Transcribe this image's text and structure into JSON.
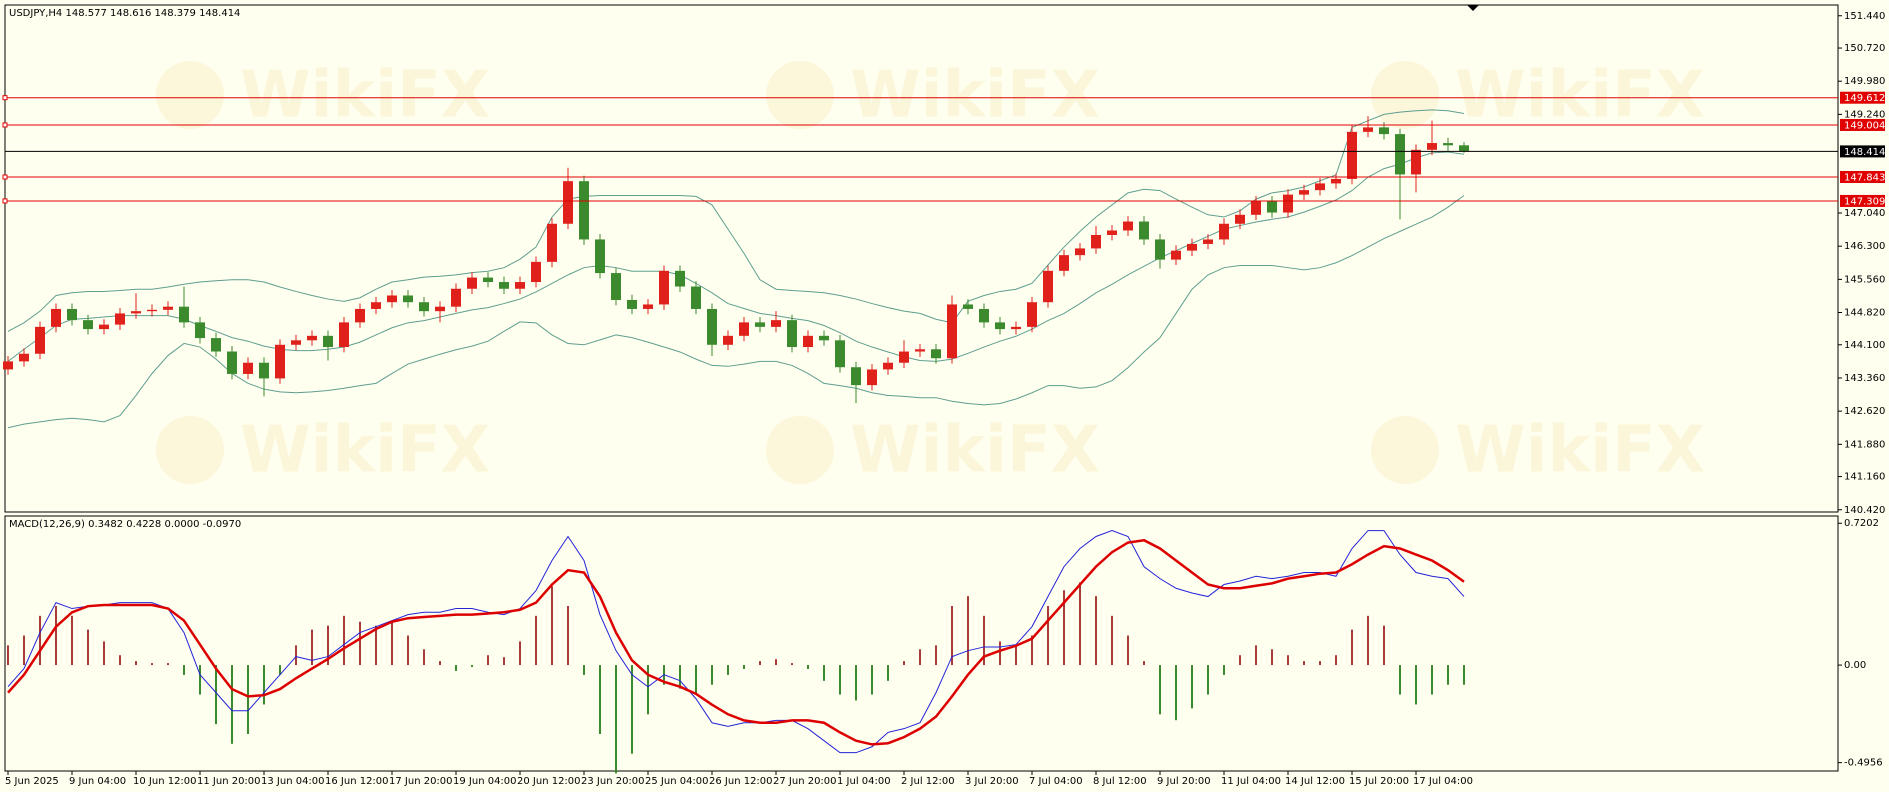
{
  "watermark": "WikiFX",
  "chart_data": [
    {
      "type": "candlestick",
      "title": "USDJPY,H4  148.577 148.616 148.379 148.414",
      "categories": [
        "5 Jun 2025",
        null,
        null,
        null,
        "9 Jun 04:00",
        null,
        null,
        null,
        "10 Jun 12:00",
        null,
        null,
        null,
        "11 Jun 20:00",
        null,
        null,
        null,
        "13 Jun 04:00",
        null,
        null,
        null,
        "16 Jun 12:00",
        null,
        null,
        null,
        "17 Jun 20:00",
        null,
        null,
        null,
        "19 Jun 04:00",
        null,
        null,
        null,
        "20 Jun 12:00",
        null,
        null,
        null,
        "23 Jun 20:00",
        null,
        null,
        null,
        "25 Jun 04:00",
        null,
        null,
        null,
        "26 Jun 12:00",
        null,
        null,
        null,
        "27 Jun 20:00",
        null,
        null,
        null,
        "1 Jul 04:00",
        null,
        null,
        null,
        "2 Jul 12:00",
        null,
        null,
        null,
        "3 Jul 20:00",
        null,
        null,
        null,
        "7 Jul 04:00",
        null,
        null,
        null,
        "8 Jul 12:00",
        null,
        null,
        null,
        "9 Jul 20:00",
        null,
        null,
        null,
        "11 Jul 04:00",
        null,
        null,
        null,
        "14 Jul 12:00",
        null,
        null,
        null,
        "15 Jul 20:00",
        null,
        null,
        null,
        "17 Jul 04:00",
        null,
        null,
        null
      ],
      "open": [
        143.55,
        143.73,
        143.9,
        144.5,
        144.9,
        144.65,
        144.45,
        144.55,
        144.8,
        144.85,
        144.88,
        144.95,
        144.6,
        144.25,
        143.95,
        143.45,
        143.7,
        143.35,
        144.1,
        144.2,
        144.3,
        144.05,
        144.6,
        144.9,
        145.05,
        145.2,
        145.05,
        144.85,
        144.95,
        145.35,
        145.6,
        145.5,
        145.35,
        145.5,
        145.95,
        146.8,
        147.75,
        146.45,
        145.7,
        145.1,
        144.9,
        145.0,
        145.75,
        145.4,
        144.9,
        144.1,
        144.3,
        144.6,
        144.5,
        144.65,
        144.05,
        144.3,
        144.2,
        143.6,
        143.2,
        143.55,
        143.7,
        143.95,
        144.0,
        143.8,
        145.0,
        144.9,
        144.6,
        144.45,
        144.5,
        145.05,
        145.75,
        146.1,
        146.25,
        146.55,
        146.65,
        146.85,
        146.45,
        146.0,
        146.2,
        146.35,
        146.45,
        146.8,
        147.0,
        147.3,
        147.05,
        147.45,
        147.55,
        147.7,
        147.8,
        148.85,
        148.95,
        148.8,
        147.9,
        148.45,
        148.6,
        148.55
      ],
      "high": [
        143.85,
        144.02,
        144.62,
        145.02,
        145.02,
        144.77,
        144.67,
        144.92,
        145.25,
        145.0,
        145.07,
        145.4,
        144.72,
        144.37,
        144.07,
        143.82,
        143.82,
        144.22,
        144.32,
        144.42,
        144.42,
        144.72,
        145.02,
        145.17,
        145.32,
        145.32,
        145.17,
        145.07,
        145.47,
        145.72,
        145.72,
        145.62,
        145.62,
        146.07,
        146.92,
        148.05,
        147.87,
        146.57,
        145.82,
        145.22,
        145.12,
        145.87,
        145.87,
        145.52,
        145.02,
        144.42,
        144.72,
        144.72,
        144.85,
        144.77,
        144.42,
        144.42,
        144.32,
        143.72,
        143.67,
        143.82,
        144.2,
        144.12,
        144.12,
        145.2,
        145.12,
        145.02,
        144.72,
        144.62,
        145.17,
        145.87,
        146.22,
        146.37,
        146.75,
        146.77,
        146.97,
        146.97,
        146.57,
        146.32,
        146.47,
        146.57,
        146.92,
        147.12,
        147.42,
        147.42,
        147.57,
        147.67,
        147.82,
        147.92,
        149.0,
        149.2,
        149.07,
        148.92,
        148.57,
        149.1,
        148.72,
        148.62
      ],
      "low": [
        143.43,
        143.61,
        143.78,
        144.38,
        144.53,
        144.33,
        144.33,
        144.43,
        144.68,
        144.73,
        144.76,
        144.48,
        144.13,
        143.83,
        143.33,
        143.33,
        142.95,
        143.23,
        143.98,
        144.08,
        143.75,
        143.93,
        144.48,
        144.78,
        144.93,
        144.93,
        144.73,
        144.6,
        144.83,
        145.23,
        145.38,
        145.23,
        145.23,
        145.38,
        145.83,
        146.68,
        146.33,
        145.58,
        144.98,
        144.78,
        144.78,
        144.88,
        145.28,
        144.78,
        143.85,
        143.98,
        144.18,
        144.38,
        144.38,
        143.93,
        143.93,
        144.08,
        143.48,
        142.8,
        143.08,
        143.43,
        143.58,
        143.83,
        143.68,
        143.68,
        144.78,
        144.48,
        144.33,
        144.33,
        144.38,
        144.93,
        145.63,
        145.98,
        146.13,
        146.43,
        146.53,
        146.33,
        145.8,
        145.88,
        146.08,
        146.23,
        146.33,
        146.68,
        146.88,
        146.93,
        146.93,
        147.33,
        147.43,
        147.58,
        147.68,
        148.73,
        148.68,
        146.9,
        147.5,
        148.33,
        148.43,
        148.38
      ],
      "close": [
        143.73,
        143.9,
        144.5,
        144.9,
        144.65,
        144.45,
        144.55,
        144.8,
        144.85,
        144.88,
        144.95,
        144.6,
        144.25,
        143.95,
        143.45,
        143.7,
        143.35,
        144.1,
        144.2,
        144.3,
        144.05,
        144.6,
        144.9,
        145.05,
        145.2,
        145.05,
        144.85,
        144.95,
        145.35,
        145.6,
        145.5,
        145.35,
        145.5,
        145.95,
        146.8,
        147.75,
        146.45,
        145.7,
        145.1,
        144.9,
        145.0,
        145.75,
        145.4,
        144.9,
        144.1,
        144.3,
        144.6,
        144.5,
        144.65,
        144.05,
        144.3,
        144.2,
        143.6,
        143.2,
        143.55,
        143.7,
        143.95,
        144.0,
        143.8,
        145.0,
        144.9,
        144.6,
        144.45,
        144.5,
        145.05,
        145.75,
        146.1,
        146.25,
        146.55,
        146.65,
        146.85,
        146.45,
        146.0,
        146.2,
        146.35,
        146.45,
        146.8,
        147.0,
        147.3,
        147.05,
        147.45,
        147.55,
        147.7,
        147.8,
        148.85,
        148.95,
        148.8,
        147.9,
        148.45,
        148.6,
        148.55,
        148.41
      ],
      "up_color": "#e0201b",
      "down_color": "#3c8a2e",
      "bands": {
        "color": "#5f9e8f",
        "upper": [
          144.4,
          144.59,
          144.85,
          145.2,
          145.26,
          145.29,
          145.29,
          145.31,
          145.34,
          145.34,
          145.39,
          145.45,
          145.5,
          145.53,
          145.55,
          145.55,
          145.5,
          145.39,
          145.29,
          145.2,
          145.12,
          145.07,
          145.15,
          145.34,
          145.5,
          145.55,
          145.61,
          145.63,
          145.66,
          145.71,
          145.74,
          145.82,
          146.01,
          146.28,
          146.95,
          147.35,
          147.41,
          147.43,
          147.43,
          147.43,
          147.43,
          147.43,
          147.43,
          147.41,
          147.22,
          146.68,
          146.14,
          145.55,
          145.34,
          145.31,
          145.29,
          145.26,
          145.2,
          145.12,
          145.02,
          144.93,
          144.85,
          144.8,
          144.67,
          144.59,
          145.07,
          145.2,
          145.29,
          145.34,
          145.47,
          145.88,
          146.28,
          146.63,
          146.95,
          147.22,
          147.49,
          147.57,
          147.54,
          147.35,
          147.17,
          147.0,
          146.95,
          147.09,
          147.35,
          147.49,
          147.54,
          147.62,
          147.76,
          147.89,
          148.95,
          149.1,
          149.24,
          149.29,
          149.32,
          149.34,
          149.32,
          149.26
        ],
        "middle": [
          143.73,
          144.0,
          144.26,
          144.53,
          144.67,
          144.69,
          144.72,
          144.75,
          144.75,
          144.75,
          144.75,
          144.67,
          144.53,
          144.4,
          144.26,
          144.18,
          144.07,
          144.0,
          143.97,
          143.97,
          144.0,
          144.05,
          144.16,
          144.32,
          144.48,
          144.59,
          144.64,
          144.72,
          144.8,
          144.88,
          144.93,
          145.02,
          145.12,
          145.28,
          145.47,
          145.66,
          145.82,
          145.87,
          145.82,
          145.74,
          145.74,
          145.74,
          145.66,
          145.47,
          145.26,
          145.02,
          144.91,
          144.8,
          144.75,
          144.69,
          144.64,
          144.53,
          144.37,
          144.18,
          144.05,
          143.94,
          143.83,
          143.75,
          143.73,
          143.78,
          143.91,
          144.05,
          144.18,
          144.29,
          144.45,
          144.64,
          144.8,
          145.02,
          145.26,
          145.45,
          145.66,
          145.85,
          146.04,
          146.2,
          146.36,
          146.52,
          146.68,
          146.76,
          146.84,
          146.9,
          146.95,
          147.06,
          147.19,
          147.33,
          147.54,
          147.84,
          148.03,
          148.13,
          148.27,
          148.38,
          148.4,
          148.35
        ],
        "lower": [
          142.25,
          142.33,
          142.38,
          142.43,
          142.46,
          142.43,
          142.38,
          142.52,
          142.97,
          143.46,
          143.86,
          144.13,
          144.05,
          143.78,
          143.46,
          143.24,
          143.11,
          143.05,
          143.03,
          143.05,
          143.08,
          143.13,
          143.19,
          143.24,
          143.46,
          143.67,
          143.78,
          143.89,
          143.99,
          144.07,
          144.18,
          144.4,
          144.61,
          144.59,
          144.32,
          144.13,
          144.1,
          144.21,
          144.32,
          144.26,
          144.16,
          144.05,
          143.94,
          143.78,
          143.64,
          143.62,
          143.67,
          143.73,
          143.73,
          143.64,
          143.46,
          143.24,
          143.19,
          143.13,
          143.03,
          142.97,
          142.95,
          142.92,
          142.92,
          142.84,
          142.79,
          142.76,
          142.79,
          142.89,
          143.03,
          143.19,
          143.19,
          143.13,
          143.16,
          143.3,
          143.59,
          143.94,
          144.26,
          144.8,
          145.34,
          145.66,
          145.82,
          145.87,
          145.87,
          145.87,
          145.82,
          145.77,
          145.82,
          145.93,
          146.09,
          146.28,
          146.47,
          146.63,
          146.79,
          146.95,
          147.17,
          147.43
        ]
      },
      "levels": [
        {
          "value": 149.612,
          "color": "#e00000"
        },
        {
          "value": 149.004,
          "color": "#e00000"
        },
        {
          "value": 148.414,
          "color": "#000000"
        },
        {
          "value": 147.843,
          "color": "#e00000"
        },
        {
          "value": 147.309,
          "color": "#e00000"
        }
      ],
      "ylim": [
        140.37,
        151.68
      ],
      "yticks": [
        {
          "value": 151.44,
          "label": "151.440"
        },
        {
          "value": 150.72,
          "label": "150.720"
        },
        {
          "value": 149.98,
          "label": "149.980"
        },
        {
          "value": 149.24,
          "label": "149.240"
        },
        {
          "value": 147.04,
          "label": "147.040"
        },
        {
          "value": 146.3,
          "label": "146.300"
        },
        {
          "value": 145.56,
          "label": "145.560"
        },
        {
          "value": 144.82,
          "label": "144.820"
        },
        {
          "value": 144.1,
          "label": "144.100"
        },
        {
          "value": 143.36,
          "label": "143.360"
        },
        {
          "value": 142.62,
          "label": "142.620"
        },
        {
          "value": 141.88,
          "label": "141.880"
        },
        {
          "value": 141.16,
          "label": "141.160"
        },
        {
          "value": 140.42,
          "label": "140.420"
        }
      ]
    },
    {
      "type": "macd",
      "title": "MACD(12,26,9) 0.3482 0.4228 0.0000 -0.0970",
      "histogram": {
        "up_color": "#a83a3a",
        "down_color": "#3c8a2e",
        "values": [
          0.1,
          0.15,
          0.25,
          0.3,
          0.25,
          0.18,
          0.12,
          0.05,
          0.02,
          0.01,
          0.01,
          -0.05,
          -0.15,
          -0.3,
          -0.4,
          -0.35,
          -0.2,
          -0.05,
          0.1,
          0.18,
          0.2,
          0.25,
          0.22,
          0.2,
          0.22,
          0.15,
          0.08,
          0.02,
          -0.03,
          -0.01,
          0.05,
          0.04,
          0.12,
          0.25,
          0.4,
          0.3,
          -0.05,
          -0.35,
          -0.55,
          -0.45,
          -0.25,
          -0.1,
          -0.12,
          -0.15,
          -0.1,
          -0.05,
          -0.02,
          0.02,
          0.03,
          0.01,
          -0.02,
          -0.08,
          -0.15,
          -0.18,
          -0.15,
          -0.08,
          0.02,
          0.08,
          0.1,
          0.3,
          0.35,
          0.25,
          0.12,
          0.1,
          0.15,
          0.3,
          0.38,
          0.42,
          0.35,
          0.25,
          0.15,
          0.02,
          -0.25,
          -0.28,
          -0.22,
          -0.15,
          -0.05,
          0.05,
          0.1,
          0.08,
          0.05,
          0.02,
          0.02,
          0.05,
          0.18,
          0.25,
          0.2,
          -0.15,
          -0.2,
          -0.15,
          -0.1,
          -0.1
        ]
      },
      "macd": {
        "color": "#2323d8",
        "values": [
          -0.11,
          -0.018,
          0.165,
          0.317,
          0.287,
          0.299,
          0.305,
          0.317,
          0.317,
          0.317,
          0.287,
          0.165,
          -0.049,
          -0.14,
          -0.232,
          -0.232,
          -0.14,
          -0.049,
          0.043,
          0.024,
          0.043,
          0.104,
          0.165,
          0.195,
          0.226,
          0.256,
          0.268,
          0.268,
          0.287,
          0.287,
          0.268,
          0.256,
          0.287,
          0.378,
          0.531,
          0.653,
          0.531,
          0.256,
          0.073,
          -0.049,
          -0.11,
          -0.049,
          -0.079,
          -0.171,
          -0.293,
          -0.311,
          -0.293,
          -0.293,
          -0.281,
          -0.281,
          -0.323,
          -0.384,
          -0.445,
          -0.445,
          -0.415,
          -0.342,
          -0.323,
          -0.293,
          -0.14,
          0.043,
          0.073,
          0.092,
          0.092,
          0.104,
          0.195,
          0.348,
          0.5,
          0.592,
          0.653,
          0.683,
          0.653,
          0.5,
          0.439,
          0.39,
          0.366,
          0.348,
          0.409,
          0.427,
          0.451,
          0.439,
          0.451,
          0.47,
          0.47,
          0.451,
          0.592,
          0.683,
          0.683,
          0.561,
          0.47,
          0.451,
          0.439,
          0.348
        ]
      },
      "signal": {
        "color": "#dd0000",
        "values": [
          -0.14,
          -0.049,
          0.073,
          0.195,
          0.268,
          0.299,
          0.305,
          0.305,
          0.305,
          0.305,
          0.287,
          0.226,
          0.104,
          -0.018,
          -0.122,
          -0.159,
          -0.153,
          -0.122,
          -0.067,
          -0.018,
          0.031,
          0.085,
          0.134,
          0.183,
          0.22,
          0.238,
          0.244,
          0.25,
          0.256,
          0.256,
          0.262,
          0.268,
          0.281,
          0.317,
          0.409,
          0.482,
          0.47,
          0.348,
          0.165,
          0.024,
          -0.049,
          -0.085,
          -0.11,
          -0.146,
          -0.201,
          -0.25,
          -0.281,
          -0.293,
          -0.293,
          -0.281,
          -0.281,
          -0.293,
          -0.342,
          -0.384,
          -0.403,
          -0.397,
          -0.366,
          -0.323,
          -0.262,
          -0.159,
          -0.049,
          0.043,
          0.073,
          0.098,
          0.134,
          0.226,
          0.317,
          0.409,
          0.5,
          0.573,
          0.622,
          0.634,
          0.592,
          0.531,
          0.47,
          0.409,
          0.39,
          0.39,
          0.403,
          0.415,
          0.439,
          0.451,
          0.464,
          0.47,
          0.512,
          0.561,
          0.604,
          0.592,
          0.561,
          0.531,
          0.482,
          0.423
        ]
      },
      "ylim": [
        -0.538,
        0.757
      ],
      "yticks": [
        0.7202,
        {
          "value": 0,
          "label": "0.00"
        },
        -0.4956
      ]
    }
  ]
}
